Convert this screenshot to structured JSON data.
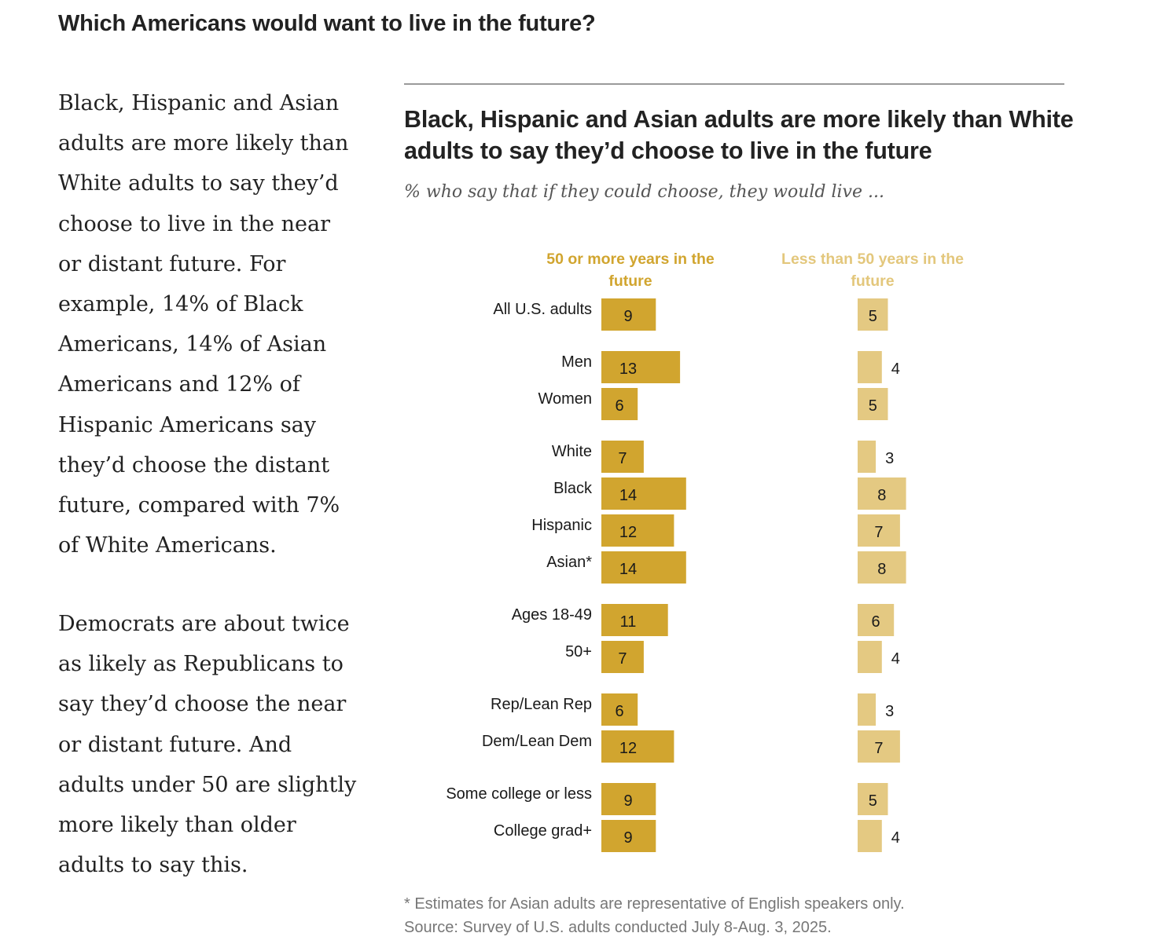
{
  "page": {
    "title": "Which Americans would want to live in the future?",
    "paragraphs": [
      "Black, Hispanic and Asian adults are more likely than White adults to say they’d choose to live in the near or distant future. For example, 14% of Black Americans, 14% of Asian Americans and 12% of Hispanic Americans say they’d choose the distant future, compared with 7% of White Americans.",
      "Democrats are about twice as likely as Republicans to say they’d choose the near or distant future. And adults under 50 are slightly more likely than older adults to say this."
    ]
  },
  "colors": {
    "series_dark": "#d1a52f",
    "series_light": "#e4c982",
    "label_text": "#1a1a1a"
  },
  "chart_data": {
    "type": "bar",
    "orientation": "horizontal",
    "title": "Black, Hispanic and Asian adults are more likely than White adults to say they’d choose to live in the future",
    "subtitle": "% who say that if they could choose, they would live ...",
    "categories": [
      "All U.S. adults",
      "Men",
      "Women",
      "White",
      "Black",
      "Hispanic",
      "Asian*",
      "Ages 18-49",
      "50+",
      "Rep/Lean Rep",
      "Dem/Lean Dem",
      "Some college or less",
      "College grad+"
    ],
    "groups": [
      [
        0
      ],
      [
        1,
        2
      ],
      [
        3,
        4,
        5,
        6
      ],
      [
        7,
        8
      ],
      [
        9,
        10
      ],
      [
        11,
        12
      ]
    ],
    "series": [
      {
        "name": "50 or more years in the future",
        "values": [
          9,
          13,
          6,
          7,
          14,
          12,
          14,
          11,
          7,
          6,
          12,
          9,
          9
        ]
      },
      {
        "name": "Less than 50 years in the future",
        "values": [
          5,
          4,
          5,
          3,
          8,
          7,
          8,
          6,
          4,
          3,
          7,
          5,
          4
        ]
      }
    ],
    "xlabel": "",
    "ylabel": "",
    "unit": "%",
    "grid": false,
    "legend": "column headers above bars",
    "note": "* Estimates for Asian adults are representative of English speakers only.",
    "source": "Source: Survey of U.S. adults conducted July 8-Aug. 3, 2025."
  }
}
